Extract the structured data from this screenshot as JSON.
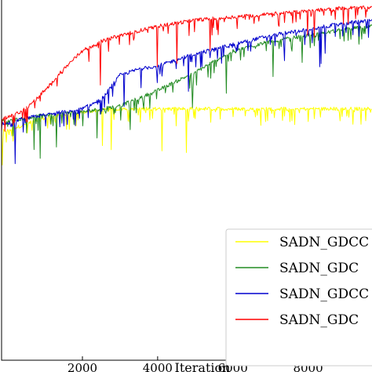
{
  "chart_data": {
    "type": "line",
    "title": "",
    "xlabel": "Iteration",
    "ylabel": "",
    "xlim": [
      -150,
      9700
    ],
    "ylim": [
      0.0,
      1.0
    ],
    "x_ticks": [
      2000,
      4000,
      6000,
      8000
    ],
    "x_tick_labels": [
      "2000",
      "4000",
      "6000",
      "8000"
    ],
    "grid": false,
    "legend_position": "lower-right",
    "series": [
      {
        "name": "SADN_GDCC",
        "color": "#ffff00",
        "x": [
          0,
          500,
          1000,
          2000,
          3000,
          4000,
          5000,
          6000,
          7000,
          8000,
          9000,
          9700
        ],
        "values": [
          0.6,
          0.62,
          0.64,
          0.66,
          0.67,
          0.67,
          0.67,
          0.67,
          0.67,
          0.67,
          0.67,
          0.67
        ]
      },
      {
        "name": "SADN_GDC",
        "color": "#228b22",
        "x": [
          0,
          500,
          1000,
          2000,
          3000,
          4000,
          5000,
          6000,
          7000,
          8000,
          9000,
          9700
        ],
        "values": [
          0.63,
          0.64,
          0.65,
          0.66,
          0.68,
          0.73,
          0.79,
          0.86,
          0.89,
          0.91,
          0.93,
          0.94
        ]
      },
      {
        "name": "SADN_GDCC",
        "color": "#0000cd",
        "x": [
          0,
          500,
          1000,
          2000,
          2500,
          3000,
          3500,
          4000,
          5000,
          6000,
          7000,
          8000,
          9000,
          9700
        ],
        "values": [
          0.62,
          0.64,
          0.65,
          0.67,
          0.7,
          0.78,
          0.8,
          0.81,
          0.85,
          0.88,
          0.91,
          0.93,
          0.95,
          0.96
        ]
      },
      {
        "name": "SADN_GDC",
        "color": "#ff0000",
        "x": [
          0,
          500,
          1000,
          1500,
          2000,
          2500,
          3000,
          4000,
          5000,
          6000,
          7000,
          8000,
          9000,
          9700
        ],
        "values": [
          0.64,
          0.67,
          0.73,
          0.8,
          0.86,
          0.89,
          0.91,
          0.94,
          0.96,
          0.97,
          0.98,
          0.99,
          1.0,
          1.0
        ]
      }
    ]
  }
}
